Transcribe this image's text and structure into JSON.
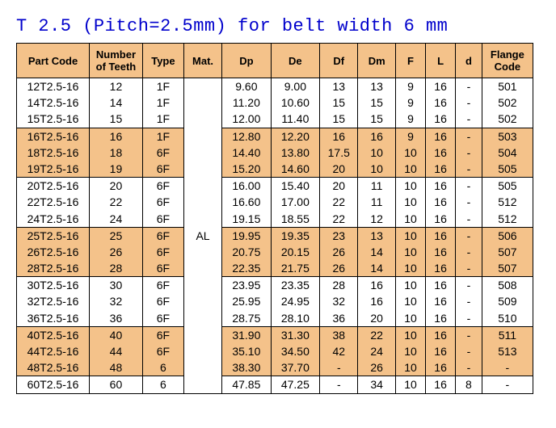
{
  "title": "T 2.5 (Pitch=2.5mm) for belt width 6 mm",
  "headers": {
    "partcode": "Part Code",
    "teeth": "Number of Teeth",
    "type": "Type",
    "mat": "Mat.",
    "dp": "Dp",
    "de": "De",
    "df": "Df",
    "dm": "Dm",
    "f": "F",
    "l": "L",
    "d": "d",
    "flange": "Flange Code"
  },
  "material": "AL",
  "colors": {
    "header_bg": "#f4c28a",
    "shaded_bg": "#f4c28a",
    "title_color": "#0000cc",
    "border_color": "#000000"
  },
  "groups": [
    {
      "shaded": false,
      "rows": [
        {
          "pc": "12T2.5-16",
          "nt": "12",
          "ty": "1F",
          "dp": "9.60",
          "de": "9.00",
          "df": "13",
          "dm": "13",
          "f": "9",
          "l": "16",
          "d": "-",
          "fc": "501"
        },
        {
          "pc": "14T2.5-16",
          "nt": "14",
          "ty": "1F",
          "dp": "11.20",
          "de": "10.60",
          "df": "15",
          "dm": "15",
          "f": "9",
          "l": "16",
          "d": "-",
          "fc": "502"
        },
        {
          "pc": "15T2.5-16",
          "nt": "15",
          "ty": "1F",
          "dp": "12.00",
          "de": "11.40",
          "df": "15",
          "dm": "15",
          "f": "9",
          "l": "16",
          "d": "-",
          "fc": "502"
        }
      ]
    },
    {
      "shaded": true,
      "rows": [
        {
          "pc": "16T2.5-16",
          "nt": "16",
          "ty": "1F",
          "dp": "12.80",
          "de": "12.20",
          "df": "16",
          "dm": "16",
          "f": "9",
          "l": "16",
          "d": "-",
          "fc": "503"
        },
        {
          "pc": "18T2.5-16",
          "nt": "18",
          "ty": "6F",
          "dp": "14.40",
          "de": "13.80",
          "df": "17.5",
          "dm": "10",
          "f": "10",
          "l": "16",
          "d": "-",
          "fc": "504"
        },
        {
          "pc": "19T2.5-16",
          "nt": "19",
          "ty": "6F",
          "dp": "15.20",
          "de": "14.60",
          "df": "20",
          "dm": "10",
          "f": "10",
          "l": "16",
          "d": "-",
          "fc": "505"
        }
      ]
    },
    {
      "shaded": false,
      "rows": [
        {
          "pc": "20T2.5-16",
          "nt": "20",
          "ty": "6F",
          "dp": "16.00",
          "de": "15.40",
          "df": "20",
          "dm": "11",
          "f": "10",
          "l": "16",
          "d": "-",
          "fc": "505"
        },
        {
          "pc": "22T2.5-16",
          "nt": "22",
          "ty": "6F",
          "dp": "16.60",
          "de": "17.00",
          "df": "22",
          "dm": "11",
          "f": "10",
          "l": "16",
          "d": "-",
          "fc": "512"
        },
        {
          "pc": "24T2.5-16",
          "nt": "24",
          "ty": "6F",
          "dp": "19.15",
          "de": "18.55",
          "df": "22",
          "dm": "12",
          "f": "10",
          "l": "16",
          "d": "-",
          "fc": "512"
        }
      ]
    },
    {
      "shaded": true,
      "rows": [
        {
          "pc": "25T2.5-16",
          "nt": "25",
          "ty": "6F",
          "dp": "19.95",
          "de": "19.35",
          "df": "23",
          "dm": "13",
          "f": "10",
          "l": "16",
          "d": "-",
          "fc": "506"
        },
        {
          "pc": "26T2.5-16",
          "nt": "26",
          "ty": "6F",
          "dp": "20.75",
          "de": "20.15",
          "df": "26",
          "dm": "14",
          "f": "10",
          "l": "16",
          "d": "-",
          "fc": "507"
        },
        {
          "pc": "28T2.5-16",
          "nt": "28",
          "ty": "6F",
          "dp": "22.35",
          "de": "21.75",
          "df": "26",
          "dm": "14",
          "f": "10",
          "l": "16",
          "d": "-",
          "fc": "507"
        }
      ]
    },
    {
      "shaded": false,
      "rows": [
        {
          "pc": "30T2.5-16",
          "nt": "30",
          "ty": "6F",
          "dp": "23.95",
          "de": "23.35",
          "df": "28",
          "dm": "16",
          "f": "10",
          "l": "16",
          "d": "-",
          "fc": "508"
        },
        {
          "pc": "32T2.5-16",
          "nt": "32",
          "ty": "6F",
          "dp": "25.95",
          "de": "24.95",
          "df": "32",
          "dm": "16",
          "f": "10",
          "l": "16",
          "d": "-",
          "fc": "509"
        },
        {
          "pc": "36T2.5-16",
          "nt": "36",
          "ty": "6F",
          "dp": "28.75",
          "de": "28.10",
          "df": "36",
          "dm": "20",
          "f": "10",
          "l": "16",
          "d": "-",
          "fc": "510"
        }
      ]
    },
    {
      "shaded": true,
      "rows": [
        {
          "pc": "40T2.5-16",
          "nt": "40",
          "ty": "6F",
          "dp": "31.90",
          "de": "31.30",
          "df": "38",
          "dm": "22",
          "f": "10",
          "l": "16",
          "d": "-",
          "fc": "511"
        },
        {
          "pc": "44T2.5-16",
          "nt": "44",
          "ty": "6F",
          "dp": "35.10",
          "de": "34.50",
          "df": "42",
          "dm": "24",
          "f": "10",
          "l": "16",
          "d": "-",
          "fc": "513"
        },
        {
          "pc": "48T2.5-16",
          "nt": "48",
          "ty": "6",
          "dp": "38.30",
          "de": "37.70",
          "df": "-",
          "dm": "26",
          "f": "10",
          "l": "16",
          "d": "-",
          "fc": "-"
        }
      ]
    },
    {
      "shaded": false,
      "rows": [
        {
          "pc": "60T2.5-16",
          "nt": "60",
          "ty": "6",
          "dp": "47.85",
          "de": "47.25",
          "df": "-",
          "dm": "34",
          "f": "10",
          "l": "16",
          "d": "8",
          "fc": "-"
        }
      ]
    }
  ]
}
